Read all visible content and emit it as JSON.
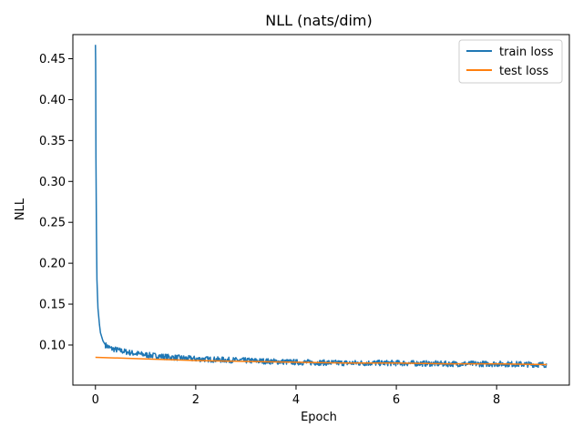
{
  "chart_data": {
    "type": "line",
    "title": "NLL (nats/dim)",
    "xlabel": "Epoch",
    "ylabel": "NLL",
    "xlim": [
      -0.45,
      9.45
    ],
    "ylim": [
      0.051,
      0.4795
    ],
    "xticks": [
      0,
      2,
      4,
      6,
      8
    ],
    "yticks": [
      0.1,
      0.15,
      0.2,
      0.25,
      0.3,
      0.35,
      0.4,
      0.45
    ],
    "xtick_labels": [
      "0",
      "2",
      "4",
      "6",
      "8"
    ],
    "ytick_labels": [
      "0.10",
      "0.15",
      "0.20",
      "0.25",
      "0.30",
      "0.35",
      "0.40",
      "0.45"
    ],
    "grid": false,
    "legend_position": "top-right",
    "series": [
      {
        "name": "train loss",
        "color": "#1f77b4",
        "x": [
          0.0,
          0.005,
          0.01,
          0.02,
          0.03,
          0.05,
          0.08,
          0.1,
          0.15,
          0.2,
          0.3,
          0.5,
          0.75,
          1.0,
          1.5,
          2.0,
          2.5,
          3.0,
          4.0,
          5.0,
          6.0,
          7.0,
          8.0,
          9.0
        ],
        "y": [
          0.467,
          0.44,
          0.33,
          0.24,
          0.18,
          0.145,
          0.125,
          0.115,
          0.105,
          0.1,
          0.096,
          0.093,
          0.09,
          0.088,
          0.085,
          0.083,
          0.082,
          0.081,
          0.079,
          0.078,
          0.078,
          0.077,
          0.077,
          0.076
        ],
        "noise": 0.0035
      },
      {
        "name": "test loss",
        "color": "#ff7f0e",
        "x": [
          0,
          1,
          2,
          3,
          4,
          5,
          6,
          7,
          8,
          9
        ],
        "y": [
          0.085,
          0.083,
          0.081,
          0.08,
          0.079,
          0.078,
          0.078,
          0.077,
          0.077,
          0.076
        ]
      }
    ]
  }
}
